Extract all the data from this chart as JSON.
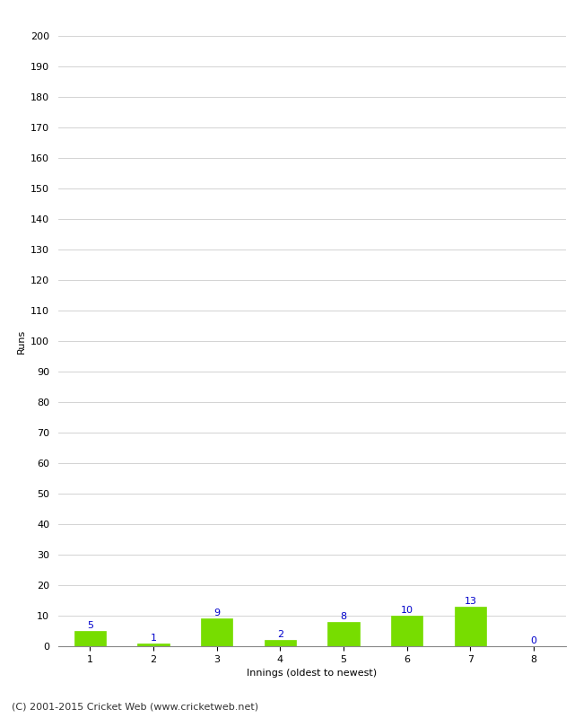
{
  "innings": [
    1,
    2,
    3,
    4,
    5,
    6,
    7,
    8
  ],
  "runs": [
    5,
    1,
    9,
    2,
    8,
    10,
    13,
    0
  ],
  "bar_color": "#77dd00",
  "bar_edge_color": "#77dd00",
  "label_color": "#0000cc",
  "xlabel": "Innings (oldest to newest)",
  "ylabel": "Runs",
  "ylim": [
    0,
    200
  ],
  "yticks": [
    0,
    10,
    20,
    30,
    40,
    50,
    60,
    70,
    80,
    90,
    100,
    110,
    120,
    130,
    140,
    150,
    160,
    170,
    180,
    190,
    200
  ],
  "grid_color": "#cccccc",
  "background_color": "#ffffff",
  "footer": "(C) 2001-2015 Cricket Web (www.cricketweb.net)",
  "label_fontsize": 8,
  "axis_fontsize": 8,
  "footer_fontsize": 8,
  "bar_width": 0.5
}
